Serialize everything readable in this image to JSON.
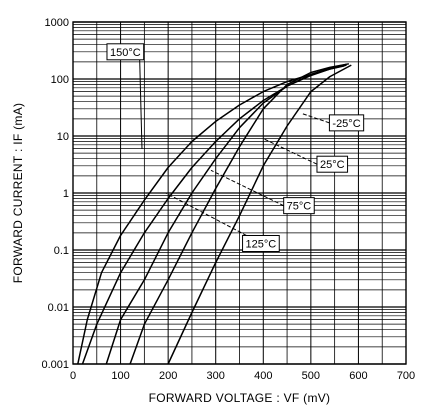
{
  "chart_data": {
    "type": "line",
    "xlabel": "FORWARD  VOLTAGE : VF (mV)",
    "ylabel": "FORWARD  CURRENT : IF (mA)",
    "xscale": "linear",
    "yscale": "log",
    "xlim": [
      0,
      700
    ],
    "ylim": [
      0.001,
      1000
    ],
    "grid": true,
    "x_ticks": [
      0,
      100,
      200,
      300,
      400,
      500,
      600,
      700
    ],
    "x_tick_labels": [
      "0",
      "100",
      "200",
      "300",
      "400",
      "500",
      "600",
      "700"
    ],
    "y_ticks": [
      0.001,
      0.01,
      0.1,
      1,
      10,
      100,
      1000
    ],
    "y_tick_labels": [
      "0.001",
      "0.01",
      "0.1",
      "1",
      "10",
      "100",
      "1000"
    ],
    "series": [
      {
        "name": "150°C",
        "x": [
          10,
          30,
          60,
          100,
          150,
          200,
          250,
          300,
          350,
          400,
          450,
          500,
          540,
          570
        ],
        "y": [
          0.001,
          0.006,
          0.04,
          0.18,
          0.75,
          2.8,
          8,
          18,
          35,
          60,
          90,
          120,
          150,
          170
        ]
      },
      {
        "name": "125°C",
        "x": [
          20,
          50,
          100,
          150,
          200,
          250,
          300,
          350,
          400,
          450,
          500,
          540,
          575
        ],
        "y": [
          0.001,
          0.005,
          0.04,
          0.2,
          0.8,
          2.8,
          8,
          20,
          42,
          75,
          115,
          150,
          175
        ]
      },
      {
        "name": "75°C",
        "x": [
          70,
          100,
          150,
          200,
          250,
          300,
          350,
          400,
          450,
          500,
          540,
          575
        ],
        "y": [
          0.001,
          0.006,
          0.03,
          0.2,
          1,
          4,
          14,
          38,
          75,
          120,
          155,
          180
        ]
      },
      {
        "name": "25°C",
        "x": [
          120,
          150,
          200,
          250,
          300,
          350,
          400,
          450,
          500,
          540,
          580
        ],
        "y": [
          0.001,
          0.005,
          0.03,
          0.2,
          1.2,
          6.5,
          30,
          80,
          130,
          160,
          185
        ]
      },
      {
        "name": "-25°C",
        "x": [
          200,
          250,
          300,
          350,
          400,
          450,
          500,
          540,
          585
        ],
        "y": [
          0.001,
          0.008,
          0.06,
          0.4,
          3,
          15,
          60,
          110,
          175
        ]
      }
    ],
    "annotations": [
      {
        "text": "150°C",
        "label_x": 110,
        "label_y": 300,
        "line_to": [
          145,
          6
        ],
        "label_at": "upper-left"
      },
      {
        "text": "-25°C",
        "label_x": 575,
        "label_y": 17,
        "line_to": [
          480,
          25
        ],
        "label_at": "right"
      },
      {
        "text": "25°C",
        "label_x": 545,
        "label_y": 3.2,
        "line_to": [
          400,
          9
        ],
        "label_at": "right"
      },
      {
        "text": "75°C",
        "label_x": 475,
        "label_y": 0.6,
        "line_to": [
          290,
          2.5
        ],
        "label_at": "right"
      },
      {
        "text": "125°C",
        "label_x": 395,
        "label_y": 0.13,
        "line_to": [
          195,
          1
        ],
        "label_at": "lower-middle"
      }
    ]
  }
}
